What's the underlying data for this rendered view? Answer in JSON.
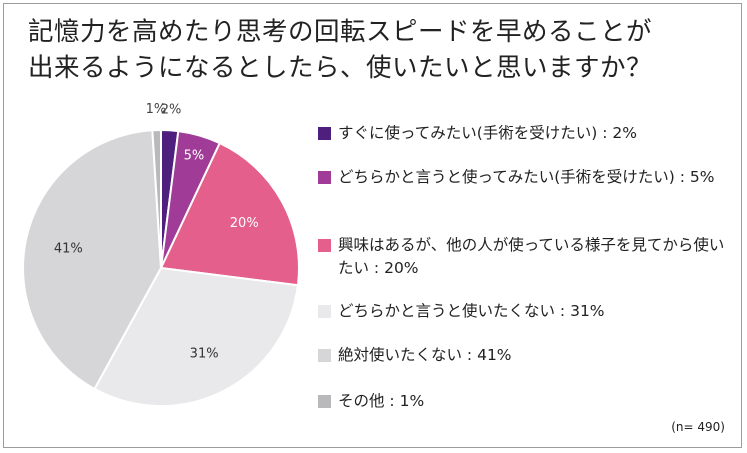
{
  "title_lines": [
    "記憶力を高めたり思考の回転スピードを早めることが",
    "出来るようになるとしたら、使いたいと思いますか？"
  ],
  "note": "(n= 490)",
  "chart_data": {
    "type": "pie",
    "title": "記憶力を高めたり思考の回転スピードを早めることが出来るようになるとしたら、使いたいと思いますか？",
    "legend_position": "right",
    "slices": [
      {
        "label": "すぐに使ってみたい(手術を受けたい) : 2%",
        "value": 2,
        "value_label": "2%",
        "color": "#4f1f7d"
      },
      {
        "label": "どちらかと言うと使ってみたい(手術を受けたい) : 5%",
        "value": 5,
        "value_label": "5%",
        "color": "#a03c97"
      },
      {
        "label": "興味はあるが、他の人が使っている様子を見てから使いたい : 20%",
        "value": 20,
        "value_label": "20%",
        "color": "#e45f8b"
      },
      {
        "label": "どちらかと言うと使いたくない : 31%",
        "value": 31,
        "value_label": "31%",
        "color": "#e9e9eb"
      },
      {
        "label": "絶対使いたくない : 41%",
        "value": 41,
        "value_label": "41%",
        "color": "#d6d6d8"
      },
      {
        "label": "その他 : 1%",
        "value": 1,
        "value_label": "1%",
        "color": "#b9b9bb"
      }
    ]
  }
}
